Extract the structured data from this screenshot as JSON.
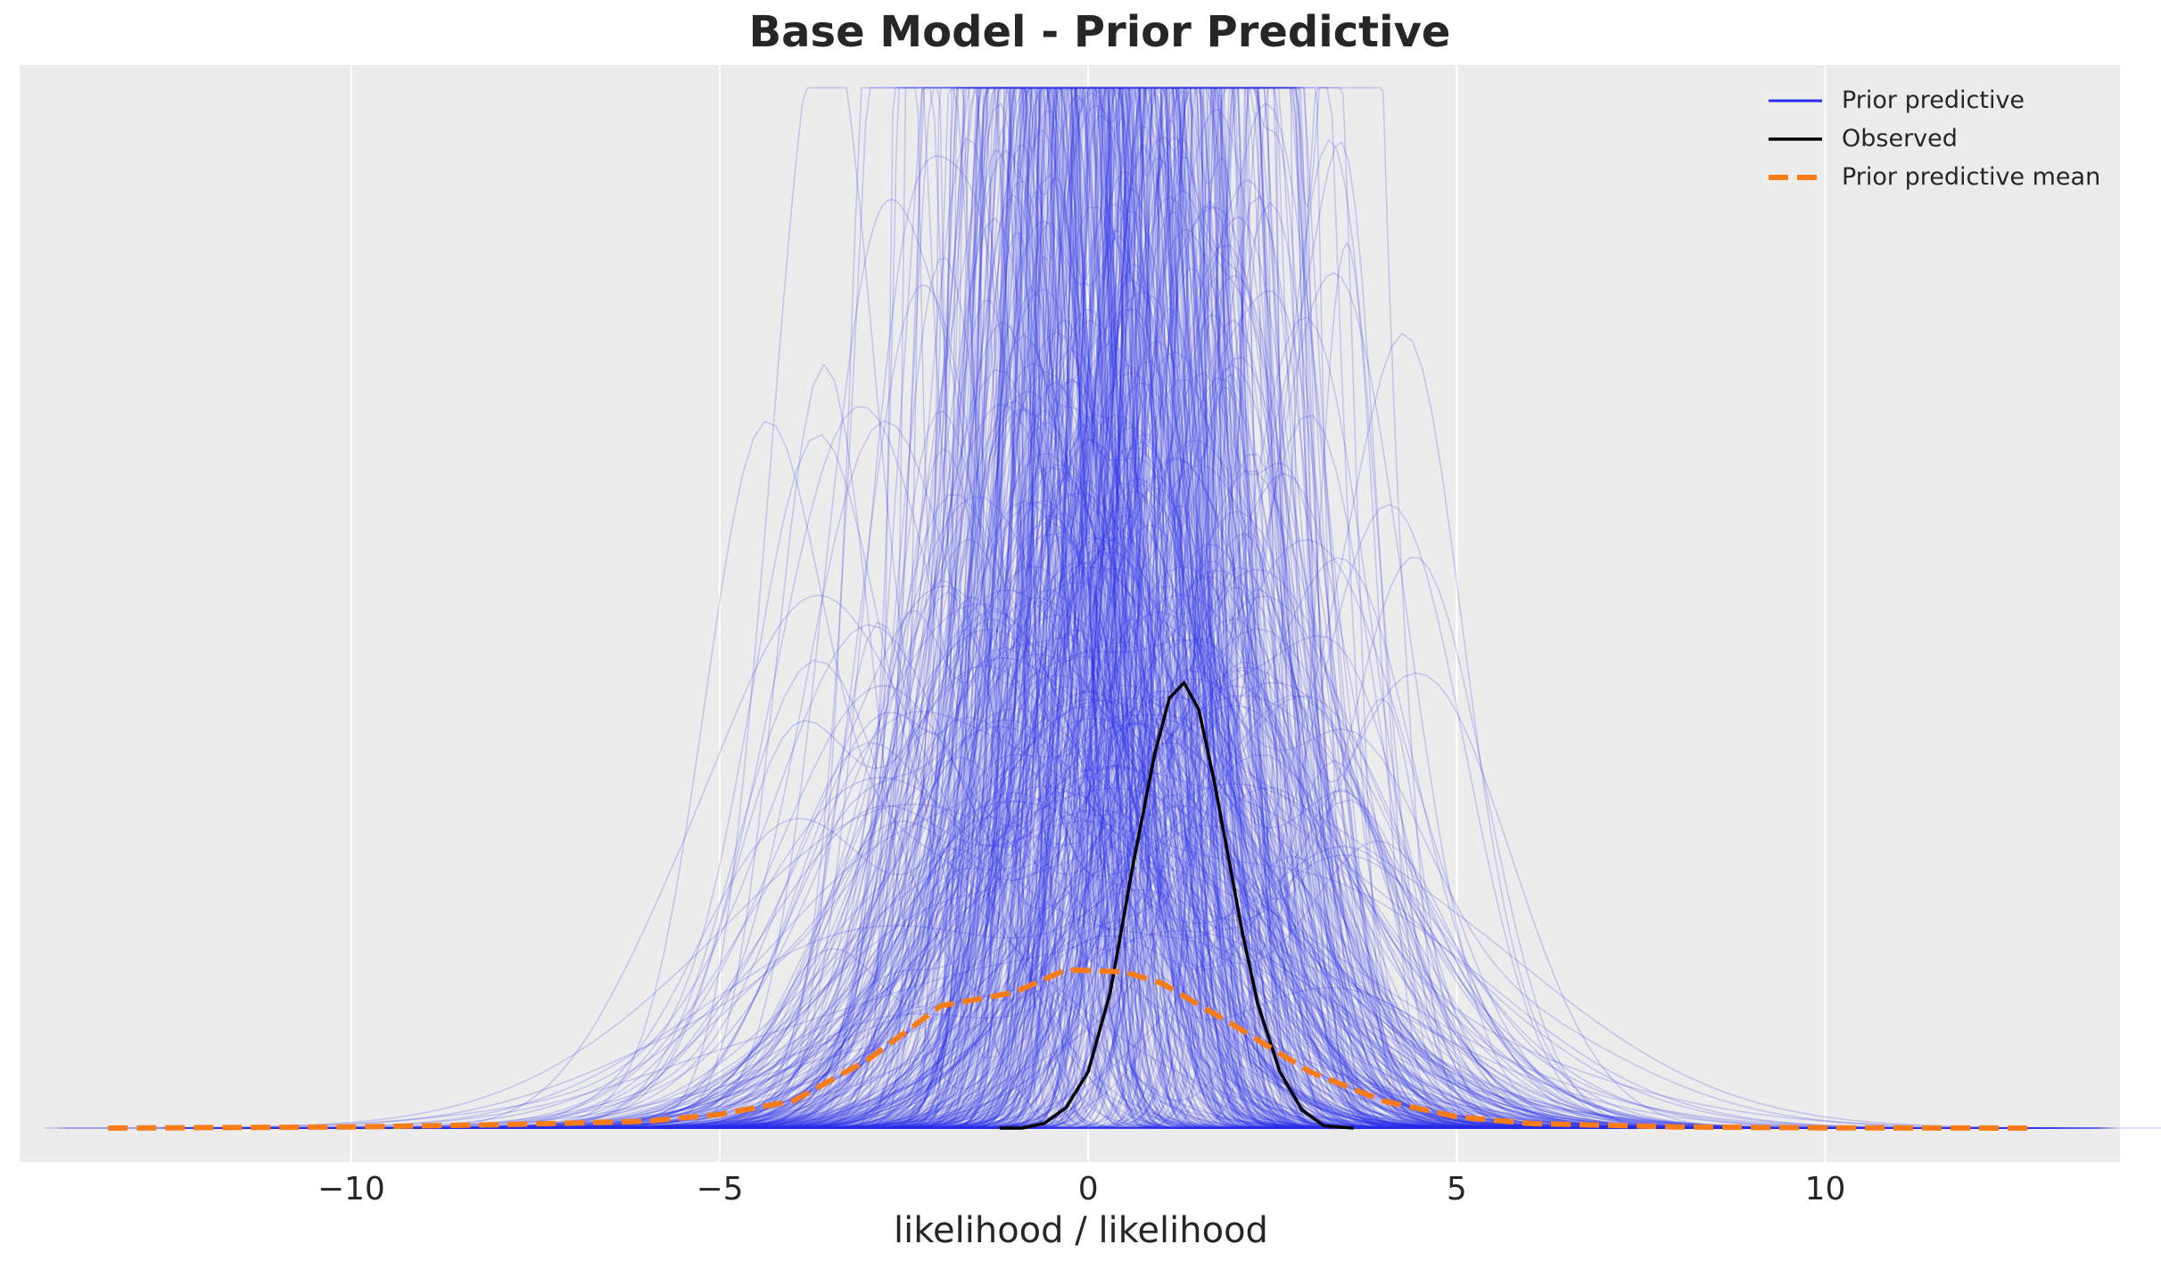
{
  "chart_data": {
    "type": "line",
    "title": "Base Model - Prior Predictive",
    "xlabel": "likelihood / likelihood",
    "ylabel": "",
    "xlim": [
      -14.5,
      14.0
    ],
    "ylim": [
      -0.015,
      0.47
    ],
    "xticks": [
      -10,
      -5,
      0,
      5,
      10
    ],
    "xtick_labels": [
      "−10",
      "−5",
      "0",
      "5",
      "10"
    ],
    "yticks_shown": false,
    "grid": "vertical lines at x ticks",
    "legend_position": "top-right",
    "background_color": "#ececec",
    "series": [
      {
        "name": "Prior predictive",
        "color": "#2a2eec",
        "style": "solid",
        "opacity": 0.2,
        "description_count": 500,
        "peak_range_y": [
          0.03,
          0.46
        ],
        "center_x": [
          -0.5,
          1.3
        ],
        "sample_curves_x": [
          -13,
          -10,
          -8,
          -6,
          -5,
          -4,
          -3,
          -2,
          -1,
          0,
          1,
          2,
          3,
          4,
          5,
          6,
          8,
          10,
          13
        ]
      },
      {
        "name": "Observed",
        "color": "#000000",
        "style": "solid",
        "x": [
          -1.2,
          -0.9,
          -0.6,
          -0.3,
          0.0,
          0.3,
          0.6,
          0.9,
          1.1,
          1.3,
          1.5,
          1.7,
          1.9,
          2.1,
          2.3,
          2.6,
          2.9,
          3.2,
          3.6
        ],
        "y": [
          0.0,
          0.0,
          0.002,
          0.009,
          0.025,
          0.06,
          0.115,
          0.165,
          0.19,
          0.197,
          0.185,
          0.155,
          0.12,
          0.085,
          0.055,
          0.025,
          0.008,
          0.001,
          0.0
        ]
      },
      {
        "name": "Prior predictive mean",
        "color": "#fa7c17",
        "style": "dashed",
        "x": [
          -13.3,
          -10,
          -8,
          -6,
          -5,
          -4,
          -3,
          -2,
          -1,
          -0.3,
          0.5,
          1.0,
          2.0,
          3.0,
          4.0,
          5.0,
          6.0,
          8.0,
          10.0,
          12.8
        ],
        "y": [
          0.0,
          0.0005,
          0.0015,
          0.003,
          0.006,
          0.012,
          0.03,
          0.054,
          0.06,
          0.07,
          0.069,
          0.064,
          0.045,
          0.025,
          0.012,
          0.005,
          0.002,
          0.0005,
          0.0001,
          0.0
        ]
      }
    ]
  }
}
